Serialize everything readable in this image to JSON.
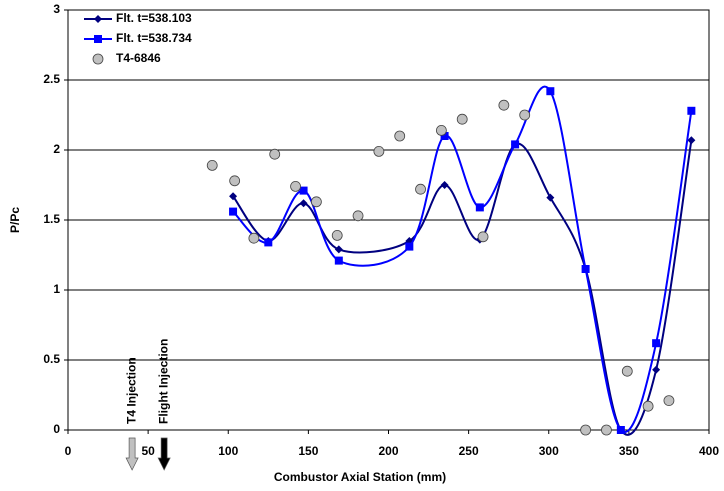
{
  "chart_data": {
    "type": "line",
    "x_label": "Combustor Axial Station (mm)",
    "y_label": "P/Pc",
    "xlim": [
      0,
      400
    ],
    "xticks": [
      0,
      50,
      100,
      150,
      200,
      250,
      300,
      350,
      400
    ],
    "ylim": [
      0,
      3
    ],
    "yticks": [
      0,
      0.5,
      1,
      1.5,
      2,
      2.5,
      3
    ],
    "grid": true,
    "legend": "top-left",
    "series": [
      {
        "name": "Flt. t=538.103",
        "color": "#000080",
        "marker": "diamond",
        "smooth": true,
        "x": [
          103,
          125,
          147,
          169,
          213,
          235,
          257,
          279,
          301,
          323,
          345,
          367,
          389
        ],
        "values": [
          1.67,
          1.35,
          1.62,
          1.29,
          1.35,
          1.75,
          1.36,
          2.04,
          1.66,
          1.15,
          0,
          0.43,
          2.07
        ]
      },
      {
        "name": "Flt. t=538.734",
        "color": "#0000ff",
        "marker": "square",
        "smooth": true,
        "x": [
          103,
          125,
          147,
          169,
          213,
          235,
          257,
          279,
          301,
          323,
          345,
          367,
          389
        ],
        "values": [
          1.56,
          1.34,
          1.71,
          1.21,
          1.31,
          2.1,
          1.59,
          2.04,
          2.42,
          1.15,
          0,
          0.62,
          2.28
        ]
      },
      {
        "name": "T4-6846",
        "color": "#c0c0c0",
        "marker": "circle",
        "smooth": false,
        "x": [
          90,
          104,
          116,
          129,
          142,
          155,
          168,
          181,
          194,
          207,
          220,
          233,
          246,
          259,
          272,
          285,
          323,
          336,
          349,
          362,
          375
        ],
        "values": [
          1.89,
          1.78,
          1.37,
          1.97,
          1.74,
          1.63,
          1.39,
          1.53,
          1.99,
          2.1,
          1.72,
          2.14,
          2.22,
          1.38,
          2.32,
          2.25,
          0,
          0,
          0.42,
          0.17,
          0.21
        ]
      }
    ],
    "annotations": [
      {
        "text": "T4 Injection",
        "x": 40,
        "color": "#c0c0c0"
      },
      {
        "text": "Flight Injection",
        "x": 60,
        "color": "#000000"
      }
    ]
  }
}
